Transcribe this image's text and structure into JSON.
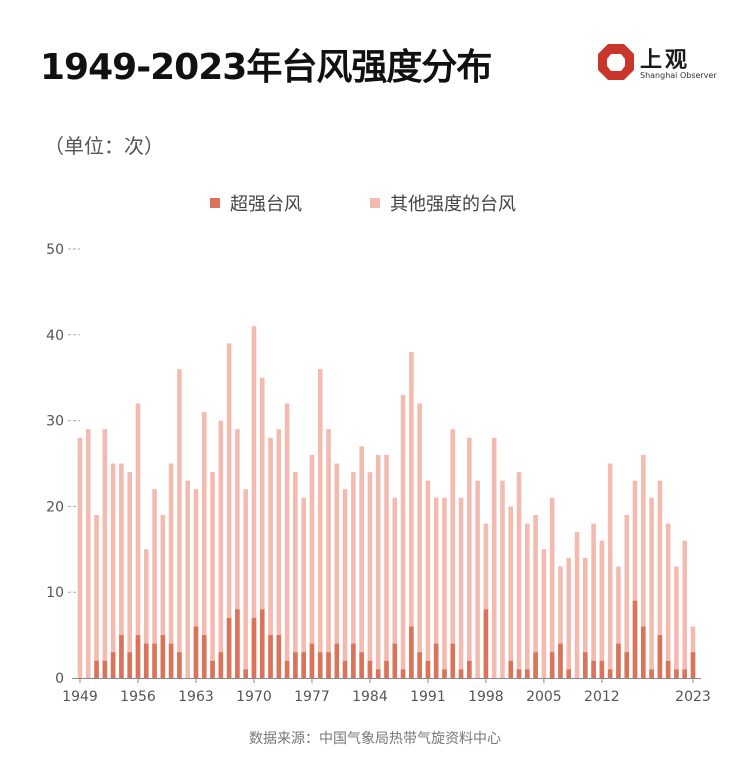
{
  "header": {
    "title": "1949-2023年台风强度分布",
    "logo_name": "上观",
    "logo_sub": "Shanghai Observer"
  },
  "unit_label": "（单位：次）",
  "source": "数据来源：中国气象局热带气旋资料中心",
  "colors": {
    "super": "#d9735a",
    "other": "#f3bbb0",
    "logo": "#c9372c"
  },
  "chart_data": {
    "type": "bar",
    "stacked": true,
    "x_start": 1949,
    "x_end": 2023,
    "ylim": [
      0,
      50
    ],
    "yticks": [
      0,
      10,
      20,
      30,
      40,
      50
    ],
    "xticks": [
      1949,
      1956,
      1963,
      1970,
      1977,
      1984,
      1991,
      1998,
      2005,
      2012,
      2023
    ],
    "legend_position": "top-center",
    "grid": "dashed-horizontal-short",
    "total_series_name": "其他强度的台风",
    "series": [
      {
        "name": "超强台风",
        "values": [
          0,
          0,
          2,
          2,
          3,
          5,
          3,
          5,
          4,
          4,
          5,
          4,
          3,
          0,
          6,
          5,
          2,
          3,
          7,
          8,
          1,
          7,
          8,
          5,
          5,
          2,
          3,
          3,
          4,
          3,
          3,
          4,
          2,
          4,
          3,
          2,
          1,
          2,
          4,
          1,
          6,
          3,
          2,
          4,
          1,
          4,
          1,
          2,
          0,
          8,
          0,
          0,
          2,
          1,
          1,
          3,
          0,
          3,
          4,
          1,
          0,
          3,
          2,
          2,
          1,
          4,
          3,
          9,
          6,
          1,
          5,
          2,
          1,
          1,
          3
        ]
      },
      {
        "name": "其他强度的台风",
        "values": [
          28,
          29,
          17,
          27,
          22,
          20,
          21,
          27,
          11,
          18,
          14,
          21,
          33,
          23,
          16,
          26,
          22,
          27,
          32,
          21,
          21,
          34,
          27,
          23,
          24,
          30,
          21,
          18,
          22,
          33,
          26,
          21,
          20,
          20,
          24,
          22,
          25,
          24,
          17,
          32,
          32,
          29,
          21,
          17,
          20,
          25,
          20,
          26,
          23,
          10,
          28,
          23,
          18,
          23,
          17,
          16,
          15,
          18,
          9,
          13,
          17,
          11,
          16,
          14,
          24,
          9,
          16,
          14,
          20,
          20,
          18,
          16,
          12,
          15,
          3
        ]
      }
    ]
  }
}
